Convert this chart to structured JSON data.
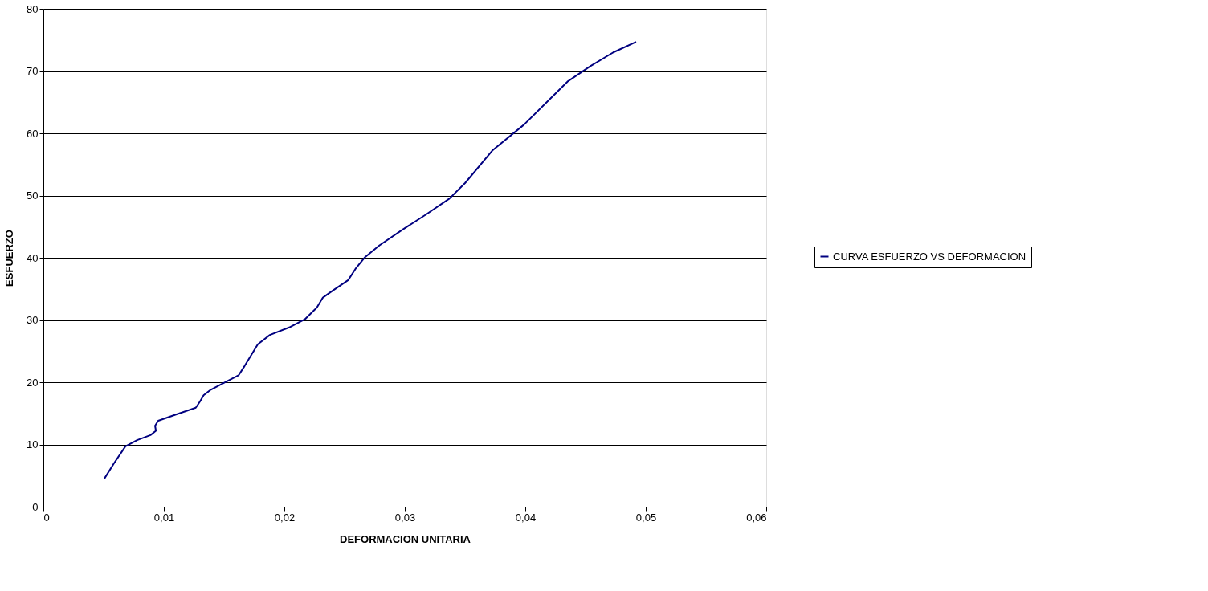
{
  "chart_data": {
    "type": "line",
    "xlabel": "DEFORMACION UNITARIA",
    "ylabel": "ESFUERZO",
    "xlim": [
      0,
      0.06
    ],
    "xticks": [
      0,
      {
        "value": 0.01,
        "label": "0,01"
      },
      {
        "value": 0.02,
        "label": "0,02"
      },
      {
        "value": 0.03,
        "label": "0,03"
      },
      {
        "value": 0.04,
        "label": "0,04"
      },
      {
        "value": 0.05,
        "label": "0,05"
      },
      {
        "value": 0.06,
        "label": "0,06"
      }
    ],
    "ylim": [
      0,
      80
    ],
    "yticks": [
      0,
      10,
      20,
      30,
      40,
      50,
      60,
      70,
      80
    ],
    "grid": "y",
    "legend": "right",
    "marker": "none",
    "line_style": "solid",
    "series": [
      {
        "name": "CURVA ESFUERZO VS DEFORMACION",
        "color": "#000080",
        "x": [
          0.00506,
          0.00584,
          0.00681,
          0.00778,
          0.00889,
          0.00934,
          0.00927,
          0.00953,
          0.011,
          0.01265,
          0.013,
          0.0133,
          0.0139,
          0.0152,
          0.0162,
          0.0167,
          0.0178,
          0.0188,
          0.0204,
          0.0217,
          0.0227,
          0.0232,
          0.024,
          0.0253,
          0.0259,
          0.0267,
          0.0279,
          0.0298,
          0.0318,
          0.0337,
          0.035,
          0.0373,
          0.0399,
          0.0422,
          0.0435,
          0.0454,
          0.0473,
          0.0492
        ],
        "values": [
          4.5,
          6.9,
          9.7,
          10.7,
          11.5,
          12.2,
          13.0,
          13.8,
          14.8,
          15.9,
          16.9,
          17.9,
          18.8,
          20.1,
          21.1,
          22.6,
          26.1,
          27.6,
          28.8,
          30.1,
          32.0,
          33.6,
          34.7,
          36.4,
          38.2,
          40.1,
          42.0,
          44.5,
          47.0,
          49.5,
          52.0,
          57.3,
          61.4,
          65.8,
          68.3,
          70.8,
          73.0,
          74.7
        ]
      }
    ]
  }
}
